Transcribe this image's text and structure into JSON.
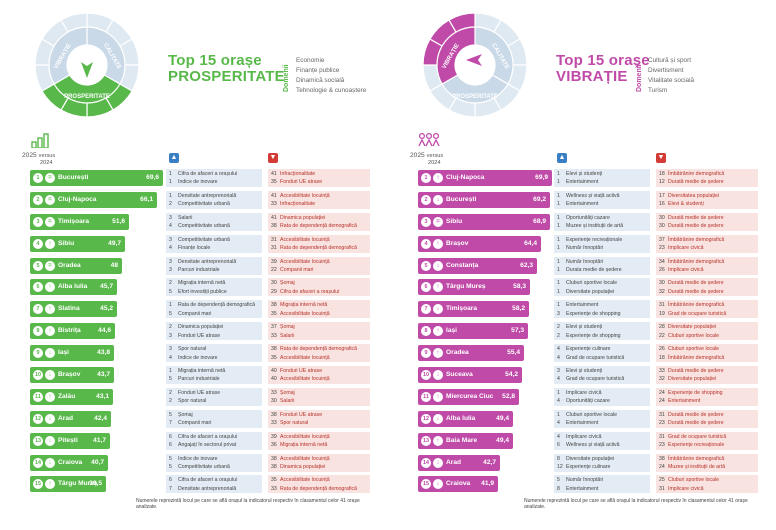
{
  "chart_data": [
    {
      "type": "bar",
      "title_line1": "Top 15 orașe",
      "title_line2": "PROSPERITATE",
      "domains_label": "Domenii",
      "domains": [
        "Economie",
        "Finanțe publice",
        "Dinamică socială",
        "Tehnologie & cunoaștere"
      ],
      "year_current": "2025",
      "versus": "versus",
      "year_prev": "2024",
      "accent": "#58b84a",
      "wheel_segments": [
        "Economie",
        "Finanțe publice",
        "Dinamică socială",
        "Tehnologie & cunoaștere"
      ],
      "wheel_labels": [
        "VIBRAȚIE",
        "CALITATE",
        "PROSPERITATE"
      ],
      "rows": [
        {
          "rank": "1",
          "trend": "=",
          "city": "București",
          "score": "69,6",
          "value": 69.6,
          "strong": [
            [
              "1",
              "Cifra de afaceri a orașului"
            ],
            [
              "1",
              "Indice de inovare"
            ]
          ],
          "weak": [
            [
              "41",
              "Infracționalitate"
            ],
            [
              "35",
              "Fonduri UE atrase"
            ]
          ]
        },
        {
          "rank": "2",
          "trend": "=",
          "city": "Cluj-Napoca",
          "score": "66,1",
          "value": 66.1,
          "strong": [
            [
              "1",
              "Densitate antreprenorială"
            ],
            [
              "2",
              "Competitivitate urbană"
            ]
          ],
          "weak": [
            [
              "41",
              "Accesibilitate locuință"
            ],
            [
              "33",
              "Infracționalitate"
            ]
          ]
        },
        {
          "rank": "3",
          "trend": "=",
          "city": "Timișoara",
          "score": "51,6",
          "value": 51.6,
          "strong": [
            [
              "3",
              "Salarii"
            ],
            [
              "4",
              "Competitivitate urbană"
            ]
          ],
          "weak": [
            [
              "41",
              "Dinamica populației"
            ],
            [
              "38",
              "Rata de dependență demografică"
            ]
          ]
        },
        {
          "rank": "4",
          "trend": "↑",
          "city": "Sibiu",
          "score": "49,7",
          "value": 49.7,
          "strong": [
            [
              "3",
              "Competitivitate urbană"
            ],
            [
              "4",
              "Finanțe locale"
            ]
          ],
          "weak": [
            [
              "31",
              "Accesibilitate locuință"
            ],
            [
              "31",
              "Rata de dependență demografică"
            ]
          ]
        },
        {
          "rank": "5",
          "trend": "=",
          "city": "Oradea",
          "score": "48",
          "value": 48,
          "strong": [
            [
              "3",
              "Densitate antreprenorială"
            ],
            [
              "3",
              "Parcuri industriale"
            ]
          ],
          "weak": [
            [
              "39",
              "Accesibilitate locuință"
            ],
            [
              "22",
              "Companii mari"
            ]
          ]
        },
        {
          "rank": "6",
          "trend": "↑",
          "city": "Alba Iulia",
          "score": "45,7",
          "value": 45.7,
          "strong": [
            [
              "2",
              "Migrația internă netă"
            ],
            [
              "5",
              "Efort investiții publice"
            ]
          ],
          "weak": [
            [
              "30",
              "Șomaj"
            ],
            [
              "29",
              "Cifra de afaceri a orașului"
            ]
          ]
        },
        {
          "rank": "7",
          "trend": "↑",
          "city": "Slatina",
          "score": "45,2",
          "value": 45.2,
          "strong": [
            [
              "1",
              "Rata de dependență demografică"
            ],
            [
              "5",
              "Companii mari"
            ]
          ],
          "weak": [
            [
              "38",
              "Migrația internă netă"
            ],
            [
              "35",
              "Accesibilitate locuință"
            ]
          ]
        },
        {
          "rank": "8",
          "trend": "↑",
          "city": "Bistrița",
          "score": "44,6",
          "value": 44.6,
          "strong": [
            [
              "2",
              "Dinamica populației"
            ],
            [
              "3",
              "Fonduri UE atrase"
            ]
          ],
          "weak": [
            [
              "37",
              "Șomaj"
            ],
            [
              "33",
              "Salarii"
            ]
          ]
        },
        {
          "rank": "9",
          "trend": "↓",
          "city": "Iași",
          "score": "43,8",
          "value": 43.8,
          "strong": [
            [
              "3",
              "Spor natural"
            ],
            [
              "4",
              "Indice de inovare"
            ]
          ],
          "weak": [
            [
              "38",
              "Rata de dependență demografică"
            ],
            [
              "35",
              "Accesibilitate locuință"
            ]
          ]
        },
        {
          "rank": "10",
          "trend": "↓",
          "city": "Brașov",
          "score": "43,7",
          "value": 43.7,
          "strong": [
            [
              "1",
              "Migrația internă netă"
            ],
            [
              "5",
              "Parcuri industriale"
            ]
          ],
          "weak": [
            [
              "40",
              "Fonduri UE atrase"
            ],
            [
              "40",
              "Accesibilitate locuință"
            ]
          ]
        },
        {
          "rank": "11",
          "trend": "↑",
          "city": "Zalău",
          "score": "43,1",
          "value": 43.1,
          "strong": [
            [
              "2",
              "Fonduri UE atrase"
            ],
            [
              "2",
              "Spor natural"
            ]
          ],
          "weak": [
            [
              "33",
              "Șomaj"
            ],
            [
              "30",
              "Salarii"
            ]
          ]
        },
        {
          "rank": "12",
          "trend": "↓",
          "city": "Arad",
          "score": "42,4",
          "value": 42.4,
          "strong": [
            [
              "5",
              "Șomaj"
            ],
            [
              "7",
              "Companii mari"
            ]
          ],
          "weak": [
            [
              "38",
              "Fonduri UE atrase"
            ],
            [
              "33",
              "Spor natural"
            ]
          ]
        },
        {
          "rank": "13",
          "trend": "↓",
          "city": "Pitești",
          "score": "41,7",
          "value": 41.7,
          "strong": [
            [
              "6",
              "Cifra de afaceri a orașului"
            ],
            [
              "6",
              "Angajați în sectorul privat"
            ]
          ],
          "weak": [
            [
              "39",
              "Accesibilitate locuință"
            ],
            [
              "36",
              "Migrația internă netă"
            ]
          ]
        },
        {
          "rank": "14",
          "trend": "↓",
          "city": "Craiova",
          "score": "40,7",
          "value": 40.7,
          "strong": [
            [
              "5",
              "Indice de inovare"
            ],
            [
              "5",
              "Competitivitate urbană"
            ]
          ],
          "weak": [
            [
              "38",
              "Accesibilitate locuință"
            ],
            [
              "38",
              "Dinamica populației"
            ]
          ]
        },
        {
          "rank": "15",
          "trend": "↑",
          "city": "Târgu Mureș",
          "score": "39,5",
          "value": 39.5,
          "strong": [
            [
              "6",
              "Cifra de afaceri a orașului"
            ],
            [
              "7",
              "Densitate antreprenorială"
            ]
          ],
          "weak": [
            [
              "35",
              "Accesibilitate locuință"
            ],
            [
              "33",
              "Rata de dependență demografică"
            ]
          ]
        }
      ],
      "footnote": "Numerele reprezintă locul pe care se află orașul la indicatorul respectiv în clasamentul celor 41 orașe analizate."
    },
    {
      "type": "bar",
      "title_line1": "Top 15 orașe",
      "title_line2": "VIBRAȚIE",
      "domains_label": "Domenii",
      "domains": [
        "Cultură și sport",
        "Divertisment",
        "Vitalitate socială",
        "Turism"
      ],
      "year_current": "2025",
      "versus": "versus",
      "year_prev": "2024",
      "accent": "#c04aa8",
      "wheel_segments": [
        "Cultură și sport",
        "Divertisment",
        "Vitalitate socială",
        "Turism"
      ],
      "wheel_labels": [
        "VIBRAȚIE",
        "CALITATE",
        "PROSPERITATE"
      ],
      "rows": [
        {
          "rank": "1",
          "trend": "↑",
          "city": "Cluj-Napoca",
          "score": "69,9",
          "value": 69.9,
          "strong": [
            [
              "1",
              "Elevi și studenți"
            ],
            [
              "1",
              "Entertainment"
            ]
          ],
          "weak": [
            [
              "18",
              "Îmbătrânire demografică"
            ],
            [
              "12",
              "Durată medie de ședere"
            ]
          ]
        },
        {
          "rank": "2",
          "trend": "↓",
          "city": "București",
          "score": "69,2",
          "value": 69.2,
          "strong": [
            [
              "1",
              "Wellness și viață activă"
            ],
            [
              "1",
              "Entertainment"
            ]
          ],
          "weak": [
            [
              "17",
              "Diversitatea populației"
            ],
            [
              "16",
              "Elevi & studenți"
            ]
          ]
        },
        {
          "rank": "3",
          "trend": "=",
          "city": "Sibiu",
          "score": "68,9",
          "value": 68.9,
          "strong": [
            [
              "1",
              "Oportunități cazare"
            ],
            [
              "1",
              "Muzee și instituții de artă"
            ]
          ],
          "weak": [
            [
              "30",
              "Durată medie de ședere"
            ],
            [
              "30",
              "Durată medie de ședere"
            ]
          ]
        },
        {
          "rank": "4",
          "trend": "↑",
          "city": "Brașov",
          "score": "64,4",
          "value": 64.4,
          "strong": [
            [
              "1",
              "Experiențe recreaționale"
            ],
            [
              "1",
              "Număr înnoptări"
            ]
          ],
          "weak": [
            [
              "37",
              "Îmbătrânire demografică"
            ],
            [
              "23",
              "Implicare civică"
            ]
          ]
        },
        {
          "rank": "5",
          "trend": "↓",
          "city": "Constanța",
          "score": "62,3",
          "value": 62.3,
          "strong": [
            [
              "1",
              "Număr înnoptări"
            ],
            [
              "1",
              "Durata medie de ședere"
            ]
          ],
          "weak": [
            [
              "34",
              "Îmbătrânire demografică"
            ],
            [
              "26",
              "Implicare civică"
            ]
          ]
        },
        {
          "rank": "6",
          "trend": "↑",
          "city": "Târgu Mureș",
          "score": "58,3",
          "value": 58.3,
          "strong": [
            [
              "1",
              "Cluburi sportive locale"
            ],
            [
              "1",
              "Diversitate populației"
            ]
          ],
          "weak": [
            [
              "30",
              "Durată medie de ședere"
            ],
            [
              "32",
              "Durată medie de ședere"
            ]
          ]
        },
        {
          "rank": "7",
          "trend": "↓",
          "city": "Timișoara",
          "score": "58,2",
          "value": 58.2,
          "strong": [
            [
              "1",
              "Entertainment"
            ],
            [
              "3",
              "Experiențe de shopping"
            ]
          ],
          "weak": [
            [
              "31",
              "Îmbătrânire demografică"
            ],
            [
              "19",
              "Grad de ocupare turistică"
            ]
          ]
        },
        {
          "rank": "8",
          "trend": "↑",
          "city": "Iași",
          "score": "57,3",
          "value": 57.3,
          "strong": [
            [
              "2",
              "Elevi și studenți"
            ],
            [
              "2",
              "Experiențe de shopping"
            ]
          ],
          "weak": [
            [
              "28",
              "Diversitate populației"
            ],
            [
              "22",
              "Cluburi sportive locale"
            ]
          ]
        },
        {
          "rank": "9",
          "trend": "↑",
          "city": "Oradea",
          "score": "55,4",
          "value": 55.4,
          "strong": [
            [
              "4",
              "Experiențe culinare"
            ],
            [
              "4",
              "Grad de ocupare turistică"
            ]
          ],
          "weak": [
            [
              "26",
              "Cluburi sportive locale"
            ],
            [
              "18",
              "Îmbătrânire demografică"
            ]
          ]
        },
        {
          "rank": "10",
          "trend": "↓",
          "city": "Suceava",
          "score": "54,2",
          "value": 54.2,
          "strong": [
            [
              "3",
              "Elevi și studenți"
            ],
            [
              "4",
              "Grad de ocupare turistică"
            ]
          ],
          "weak": [
            [
              "33",
              "Durată medie de ședere"
            ],
            [
              "32",
              "Diversitate populației"
            ]
          ]
        },
        {
          "rank": "11",
          "trend": "↑",
          "city": "Miercurea Ciuc",
          "score": "52,8",
          "value": 52.8,
          "strong": [
            [
              "1",
              "Implicare civică"
            ],
            [
              "4",
              "Oportunități cazare"
            ]
          ],
          "weak": [
            [
              "24",
              "Experiențe de shopping"
            ],
            [
              "24",
              "Entertainment"
            ]
          ]
        },
        {
          "rank": "12",
          "trend": "↓",
          "city": "Alba Iulia",
          "score": "49,4",
          "value": 49.4,
          "strong": [
            [
              "1",
              "Cluburi sportive locale"
            ],
            [
              "4",
              "Entertainment"
            ]
          ],
          "weak": [
            [
              "31",
              "Durată medie de ședere"
            ],
            [
              "23",
              "Durată medie de ședere"
            ]
          ]
        },
        {
          "rank": "13",
          "trend": "↑",
          "city": "Baia Mare",
          "score": "49,4",
          "value": 49.4,
          "strong": [
            [
              "4",
              "Implicare civică"
            ],
            [
              "6",
              "Wellness și viață activă"
            ]
          ],
          "weak": [
            [
              "31",
              "Grad de ocupare turistică"
            ],
            [
              "23",
              "Experiențe recreaționale"
            ]
          ]
        },
        {
          "rank": "14",
          "trend": "↓",
          "city": "Arad",
          "score": "42,7",
          "value": 42.7,
          "strong": [
            [
              "8",
              "Diversitate populației"
            ],
            [
              "12",
              "Experiențe culinare"
            ]
          ],
          "weak": [
            [
              "38",
              "Îmbătrânire demografică"
            ],
            [
              "24",
              "Muzee și instituții de artă"
            ]
          ]
        },
        {
          "rank": "15",
          "trend": "↓",
          "city": "Craiova",
          "score": "41,9",
          "value": 41.9,
          "strong": [
            [
              "5",
              "Număr înnoptări"
            ],
            [
              "8",
              "Entertainment"
            ]
          ],
          "weak": [
            [
              "25",
              "Cluburi sportive locale"
            ],
            [
              "31",
              "Implicare civică"
            ]
          ]
        }
      ],
      "footnote": "Numerele reprezintă locul pe care se află orașul la indicatorul respectiv în clasamentul celor 41 orașe analizate."
    }
  ]
}
